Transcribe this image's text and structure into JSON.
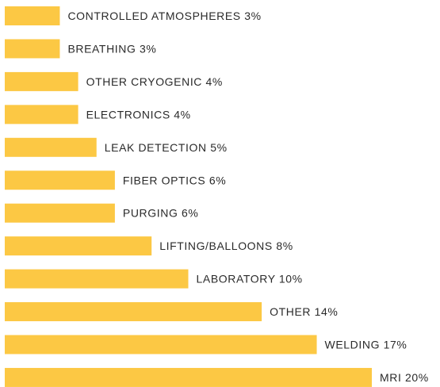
{
  "chart_data": {
    "type": "bar",
    "orientation": "horizontal",
    "color": "#fcc844",
    "categories": [
      "CONTROLLED ATMOSPHERES",
      "BREATHING",
      "OTHER CRYOGENIC",
      "ELECTRONICS",
      "LEAK DETECTION",
      "FIBER OPTICS",
      "PURGING",
      "LIFTING/BALLOONS",
      "LABORATORY",
      "OTHER",
      "WELDING",
      "MRI"
    ],
    "values": [
      3,
      3,
      4,
      4,
      5,
      6,
      6,
      8,
      10,
      14,
      17,
      20
    ],
    "value_labels": [
      "3%",
      "3%",
      "4%",
      "4%",
      "5%",
      "6%",
      "6%",
      "8%",
      "10%",
      "14%",
      "17%",
      "20%"
    ]
  }
}
